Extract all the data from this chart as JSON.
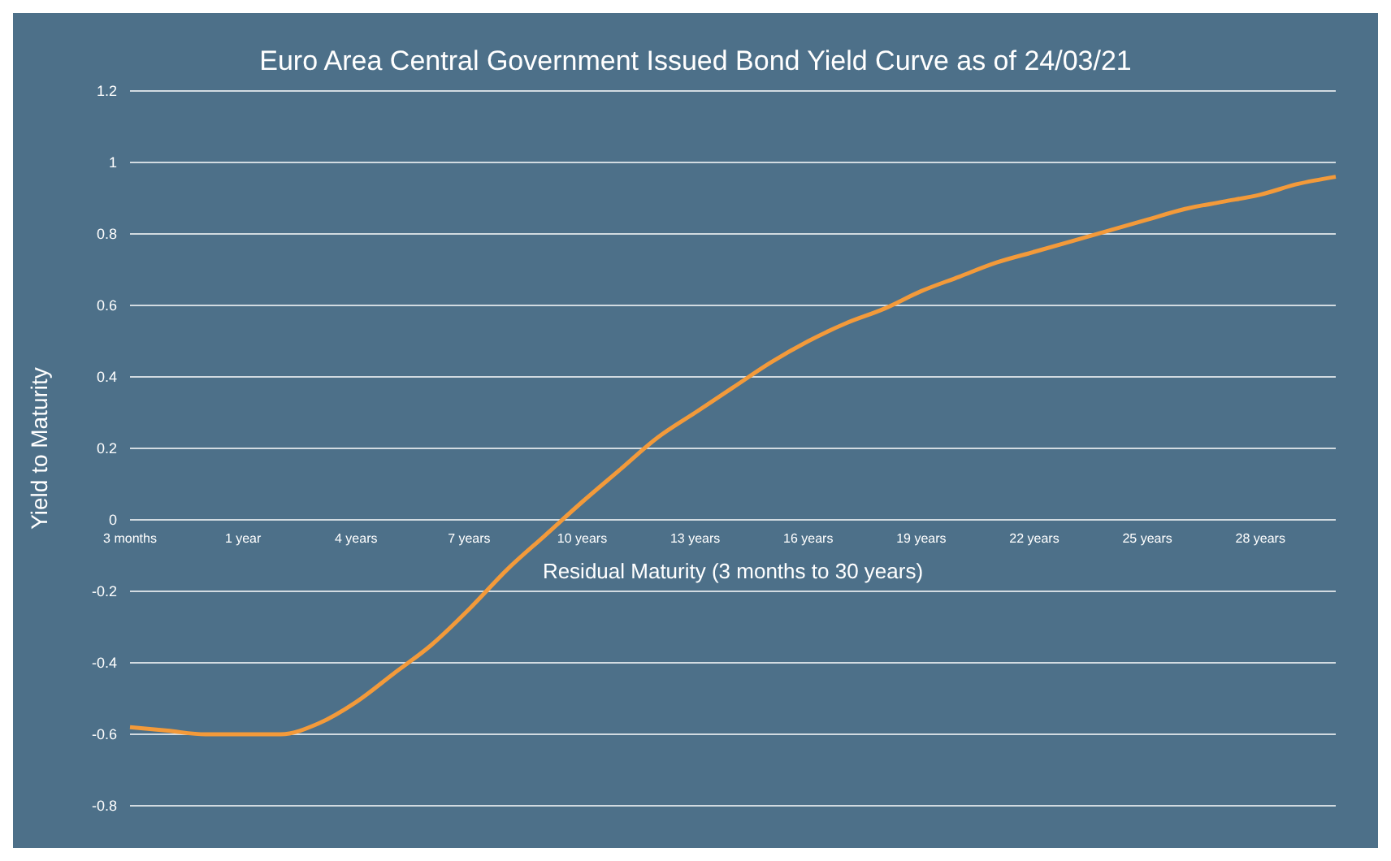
{
  "chart_data": {
    "type": "line",
    "title": "Euro Area Central Government Issued Bond Yield Curve as of 24/03/21",
    "xlabel": "Residual Maturity  (3 months to 30 years)",
    "ylabel": "Yield to Maturity",
    "categories": [
      "3 months",
      null,
      null,
      "1 year",
      null,
      null,
      "4 years",
      null,
      null,
      "7 years",
      null,
      null,
      "10 years",
      null,
      null,
      "13 years",
      null,
      null,
      "16 years",
      null,
      null,
      "19 years",
      null,
      null,
      "22 years",
      null,
      null,
      "25 years",
      null,
      null,
      "28 years",
      null,
      null
    ],
    "series": [
      {
        "color": "#f39a3a",
        "values": [
          -0.58,
          -0.59,
          -0.6,
          -0.6,
          -0.6,
          -0.57,
          -0.51,
          -0.43,
          -0.35,
          -0.25,
          -0.14,
          -0.045,
          0.05,
          0.14,
          0.23,
          0.3,
          0.37,
          0.44,
          0.5,
          0.55,
          0.59,
          0.64,
          0.68,
          0.72,
          0.75,
          0.78,
          0.81,
          0.84,
          0.87,
          0.89,
          0.91,
          0.94,
          0.96
        ]
      }
    ],
    "ylim": [
      -0.8,
      1.2
    ],
    "yticks": [
      -0.8,
      -0.6,
      -0.4,
      -0.2,
      0,
      0.2,
      0.4,
      0.6,
      0.8,
      1,
      1.2
    ],
    "grid": "y",
    "legend": false,
    "marker": "none",
    "line_style": "solid"
  }
}
